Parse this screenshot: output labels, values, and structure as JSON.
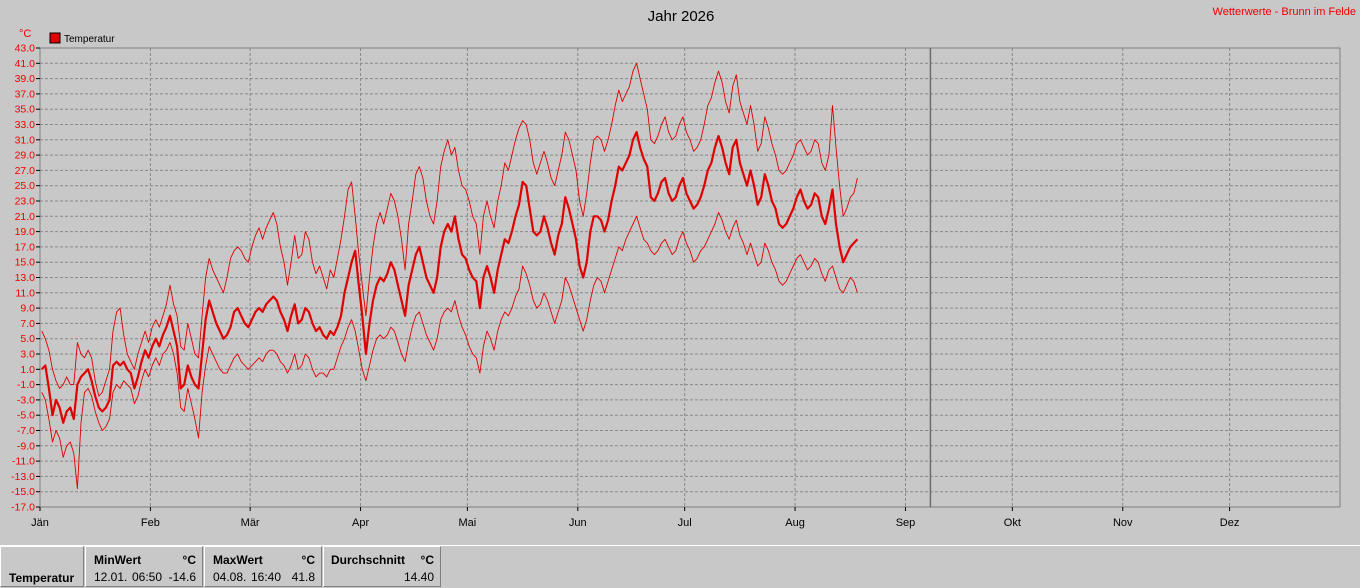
{
  "header": {
    "title": "Jahr 2026",
    "source": "Wetterwerte - Brunn im Felde",
    "unit": "°C",
    "legend_label": "Temperatur"
  },
  "colors": {
    "series": "#e00000",
    "text_red": "#ee0000",
    "grid": "#888888",
    "plot_bg": "#c8c8c8"
  },
  "stats": {
    "row_label": "Temperatur",
    "min": {
      "header": "MinWert",
      "unit": "°C",
      "date": "12.01.",
      "time": "06:50",
      "value": "-14.6"
    },
    "max": {
      "header": "MaxWert",
      "unit": "°C",
      "date": "04.08.",
      "time": "16:40",
      "value": "41.8"
    },
    "avg": {
      "header": "Durchschnitt",
      "unit": "°C",
      "value": "14.40"
    }
  },
  "chart_data": {
    "type": "line",
    "title": "Jahr 2026",
    "ylabel": "°C",
    "ylim": [
      -17,
      43
    ],
    "ytick_step": 2,
    "months": [
      "Jän",
      "Feb",
      "Mär",
      "Apr",
      "Mai",
      "Jun",
      "Jul",
      "Aug",
      "Sep",
      "Okt",
      "Nov",
      "Dez"
    ],
    "month_start_days": [
      0,
      31,
      59,
      90,
      120,
      151,
      181,
      212,
      243,
      273,
      304,
      334
    ],
    "days_in_year": 365,
    "current_day": 250,
    "grid": true,
    "legend_position": "top-left",
    "series": [
      {
        "name": "Temperatur",
        "role": "avg",
        "values": [
          1.0,
          1.5,
          -1.5,
          -5.0,
          -3.0,
          -4.0,
          -6.0,
          -4.5,
          -4.0,
          -5.5,
          -1.0,
          0.0,
          0.5,
          1.0,
          -0.5,
          -2.5,
          -4.0,
          -4.5,
          -4.0,
          -3.0,
          1.5,
          2.0,
          1.5,
          2.0,
          1.0,
          0.5,
          -1.5,
          0.0,
          2.0,
          3.5,
          2.5,
          4.0,
          5.0,
          4.0,
          5.5,
          6.5,
          8.0,
          6.0,
          4.0,
          -1.5,
          -1.0,
          1.5,
          0.0,
          -1.0,
          -1.5,
          3.0,
          7.5,
          10.0,
          8.5,
          7.0,
          6.0,
          5.0,
          5.5,
          6.5,
          8.5,
          9.0,
          8.0,
          7.0,
          6.5,
          7.5,
          8.5,
          9.0,
          8.5,
          9.5,
          10.0,
          10.5,
          10.0,
          8.5,
          7.5,
          6.0,
          8.0,
          9.5,
          7.0,
          7.5,
          9.0,
          8.5,
          7.0,
          6.0,
          6.5,
          5.5,
          5.0,
          6.0,
          5.5,
          6.5,
          8.0,
          11.0,
          13.0,
          15.0,
          16.5,
          12.0,
          8.0,
          3.0,
          7.0,
          10.0,
          12.0,
          13.0,
          12.5,
          13.5,
          15.0,
          14.0,
          12.0,
          10.0,
          8.0,
          12.0,
          14.0,
          16.0,
          17.0,
          15.0,
          13.0,
          12.0,
          11.0,
          13.0,
          17.0,
          19.0,
          20.0,
          19.0,
          21.0,
          18.0,
          16.0,
          15.5,
          14.0,
          13.0,
          12.5,
          9.0,
          13.0,
          14.5,
          13.0,
          11.0,
          14.0,
          16.0,
          18.0,
          17.5,
          19.0,
          21.0,
          22.5,
          25.5,
          25.0,
          22.0,
          19.0,
          18.5,
          19.0,
          21.0,
          19.5,
          17.5,
          16.0,
          18.5,
          20.0,
          23.5,
          22.0,
          20.0,
          18.0,
          14.5,
          13.0,
          15.0,
          19.0,
          21.0,
          21.0,
          20.5,
          19.0,
          20.5,
          23.0,
          25.0,
          27.5,
          27.0,
          28.0,
          29.0,
          31.0,
          32.0,
          30.0,
          28.5,
          27.5,
          23.5,
          23.0,
          24.0,
          25.5,
          26.0,
          24.0,
          23.0,
          23.5,
          25.0,
          26.0,
          24.0,
          23.0,
          22.0,
          22.5,
          23.5,
          25.0,
          27.0,
          28.0,
          30.0,
          31.5,
          30.0,
          28.0,
          26.5,
          30.0,
          31.0,
          28.0,
          26.5,
          25.0,
          27.0,
          25.0,
          22.5,
          23.5,
          26.5,
          25.0,
          23.0,
          22.0,
          20.0,
          19.5,
          20.0,
          21.0,
          22.0,
          23.5,
          24.5,
          23.0,
          22.0,
          22.5,
          24.0,
          23.5,
          21.0,
          20.0,
          22.0,
          24.5,
          20.0,
          17.0,
          15.0,
          16.0,
          17.0,
          17.5,
          18.0
        ]
      },
      {
        "name": "Maximum",
        "role": "max",
        "values": [
          6.0,
          5.0,
          3.5,
          1.0,
          -0.5,
          -1.5,
          -1.0,
          0.0,
          -1.0,
          -1.0,
          4.5,
          3.0,
          2.5,
          3.5,
          2.5,
          -0.5,
          -2.5,
          -2.0,
          -0.5,
          1.0,
          6.0,
          8.5,
          9.0,
          5.5,
          3.0,
          2.0,
          1.0,
          3.0,
          4.5,
          6.0,
          4.5,
          6.5,
          7.5,
          6.5,
          8.0,
          9.5,
          12.0,
          9.5,
          8.0,
          4.0,
          3.5,
          7.0,
          5.0,
          3.0,
          2.5,
          8.0,
          13.0,
          15.5,
          14.0,
          13.0,
          12.0,
          11.0,
          13.0,
          15.5,
          16.5,
          17.0,
          16.5,
          15.5,
          15.0,
          17.0,
          18.5,
          19.5,
          18.0,
          19.5,
          20.5,
          21.5,
          20.0,
          17.0,
          15.0,
          12.0,
          15.0,
          18.5,
          15.5,
          16.0,
          19.0,
          18.0,
          15.0,
          13.5,
          14.5,
          13.0,
          11.5,
          14.0,
          13.0,
          15.5,
          18.0,
          21.0,
          24.5,
          25.5,
          21.0,
          16.0,
          12.0,
          8.0,
          13.0,
          17.0,
          20.0,
          21.5,
          20.0,
          22.0,
          24.0,
          23.0,
          21.0,
          18.0,
          14.0,
          20.0,
          23.0,
          26.5,
          27.5,
          26.0,
          23.0,
          21.0,
          20.0,
          23.0,
          27.5,
          29.5,
          31.0,
          29.0,
          30.0,
          27.0,
          25.0,
          24.5,
          23.0,
          21.0,
          20.0,
          16.0,
          21.0,
          23.0,
          21.0,
          19.5,
          23.0,
          25.0,
          28.0,
          27.0,
          29.0,
          31.0,
          32.5,
          33.5,
          33.0,
          31.0,
          28.0,
          26.5,
          28.0,
          29.5,
          28.0,
          26.0,
          25.0,
          27.0,
          29.0,
          32.0,
          31.0,
          29.0,
          27.0,
          23.0,
          21.0,
          24.0,
          28.0,
          31.0,
          31.5,
          31.0,
          29.5,
          31.0,
          33.0,
          35.5,
          37.5,
          36.0,
          37.0,
          38.0,
          40.0,
          41.0,
          39.0,
          37.0,
          35.0,
          31.0,
          30.5,
          31.5,
          33.0,
          34.0,
          32.0,
          31.0,
          31.5,
          33.0,
          34.0,
          32.0,
          31.0,
          29.5,
          30.0,
          31.0,
          33.0,
          35.5,
          36.5,
          38.5,
          40.0,
          38.5,
          36.0,
          34.5,
          38.0,
          39.5,
          36.0,
          34.5,
          33.0,
          35.5,
          33.0,
          29.5,
          30.5,
          34.0,
          32.5,
          30.5,
          29.0,
          27.0,
          26.5,
          27.0,
          28.0,
          29.0,
          30.5,
          31.0,
          30.0,
          29.0,
          29.5,
          31.0,
          30.5,
          28.0,
          27.0,
          29.0,
          35.5,
          30.0,
          25.0,
          21.0,
          22.0,
          23.5,
          24.0,
          26.0
        ]
      },
      {
        "name": "Minimum",
        "role": "min",
        "values": [
          -2.0,
          -3.0,
          -5.5,
          -8.5,
          -7.0,
          -8.0,
          -10.5,
          -9.0,
          -8.5,
          -10.0,
          -14.6,
          -6.0,
          -2.0,
          -1.5,
          -2.5,
          -4.5,
          -6.0,
          -7.0,
          -6.5,
          -5.5,
          -2.0,
          -1.0,
          -1.5,
          -0.5,
          -1.0,
          -1.5,
          -3.5,
          -2.5,
          -0.5,
          1.0,
          0.0,
          1.5,
          2.5,
          1.5,
          3.0,
          3.5,
          4.5,
          3.0,
          0.5,
          -4.0,
          -4.5,
          -1.5,
          -3.5,
          -5.5,
          -8.0,
          -2.0,
          1.5,
          4.0,
          3.0,
          2.0,
          1.0,
          0.5,
          0.5,
          1.5,
          2.5,
          3.0,
          2.0,
          1.5,
          1.0,
          1.5,
          2.0,
          2.5,
          2.0,
          3.0,
          3.5,
          3.5,
          3.0,
          2.0,
          1.5,
          0.5,
          1.5,
          3.0,
          1.0,
          1.5,
          3.0,
          2.5,
          1.0,
          0.0,
          0.5,
          0.5,
          0.0,
          1.0,
          1.0,
          2.5,
          4.0,
          5.0,
          6.5,
          7.5,
          6.0,
          3.5,
          1.0,
          -0.5,
          1.5,
          3.5,
          5.0,
          5.5,
          5.0,
          5.5,
          6.5,
          6.0,
          4.5,
          3.0,
          2.0,
          4.5,
          6.5,
          8.0,
          8.5,
          7.0,
          5.5,
          4.5,
          3.5,
          5.0,
          7.5,
          8.5,
          9.0,
          8.5,
          10.0,
          8.0,
          6.5,
          5.5,
          4.0,
          3.0,
          2.5,
          0.5,
          4.0,
          6.0,
          5.0,
          3.5,
          6.0,
          7.5,
          8.5,
          8.0,
          9.0,
          10.5,
          11.5,
          14.5,
          13.5,
          12.0,
          10.0,
          9.0,
          9.5,
          11.0,
          10.0,
          8.5,
          7.0,
          8.5,
          10.0,
          13.0,
          12.0,
          10.5,
          9.0,
          7.5,
          6.0,
          7.5,
          10.0,
          12.0,
          13.0,
          12.5,
          11.0,
          12.5,
          14.0,
          15.5,
          17.0,
          16.5,
          18.0,
          19.0,
          20.0,
          21.0,
          19.5,
          18.0,
          17.5,
          16.5,
          16.0,
          16.5,
          17.5,
          18.0,
          17.0,
          16.0,
          16.5,
          18.0,
          19.0,
          17.5,
          16.5,
          15.0,
          15.5,
          16.5,
          17.0,
          18.0,
          19.0,
          20.0,
          21.5,
          20.5,
          19.0,
          18.0,
          19.5,
          20.5,
          18.5,
          17.5,
          16.0,
          17.5,
          16.0,
          14.5,
          15.0,
          17.5,
          16.5,
          15.0,
          14.0,
          12.5,
          12.0,
          12.5,
          13.5,
          14.5,
          15.5,
          16.0,
          15.0,
          14.0,
          14.5,
          15.5,
          15.0,
          13.5,
          12.5,
          14.0,
          14.5,
          13.0,
          11.5,
          11.0,
          12.0,
          13.0,
          12.5,
          11.0
        ]
      }
    ]
  }
}
